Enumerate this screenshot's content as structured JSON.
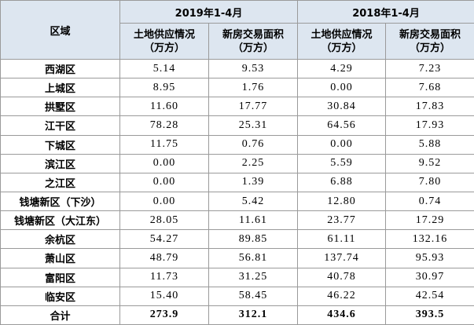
{
  "table": {
    "header": {
      "region": "区域",
      "periods": [
        "2019年1-4月",
        "2018年1-4月"
      ],
      "columns": [
        [
          "土地供应情况",
          "（万方）"
        ],
        [
          "新房交易面积",
          "（万方）"
        ],
        [
          "土地供应情况",
          "（万方）"
        ],
        [
          "新房交易面积",
          "（万方）"
        ]
      ]
    },
    "rows": [
      [
        "西湖区",
        "5.14",
        "9.53",
        "4.29",
        "7.23"
      ],
      [
        "上城区",
        "8.95",
        "1.76",
        "0.00",
        "7.68"
      ],
      [
        "拱墅区",
        "11.60",
        "17.77",
        "30.84",
        "17.83"
      ],
      [
        "江干区",
        "78.28",
        "25.31",
        "64.56",
        "17.93"
      ],
      [
        "下城区",
        "11.75",
        "0.76",
        "0.00",
        "5.88"
      ],
      [
        "滨江区",
        "0.00",
        "2.25",
        "5.59",
        "9.52"
      ],
      [
        "之江区",
        "0.00",
        "1.39",
        "6.88",
        "7.80"
      ],
      [
        "钱塘新区（下沙）",
        "0.00",
        "5.42",
        "12.80",
        "0.74"
      ],
      [
        "钱塘新区（大江东）",
        "28.05",
        "11.61",
        "23.77",
        "17.29"
      ],
      [
        "余杭区",
        "54.27",
        "89.85",
        "61.11",
        "132.16"
      ],
      [
        "萧山区",
        "48.79",
        "56.81",
        "137.74",
        "95.93"
      ],
      [
        "富阳区",
        "11.73",
        "31.25",
        "40.78",
        "30.97"
      ],
      [
        "临安区",
        "15.40",
        "58.45",
        "46.22",
        "42.54"
      ]
    ],
    "total": [
      "合计",
      "273.9",
      "312.1",
      "434.6",
      "393.5"
    ]
  }
}
